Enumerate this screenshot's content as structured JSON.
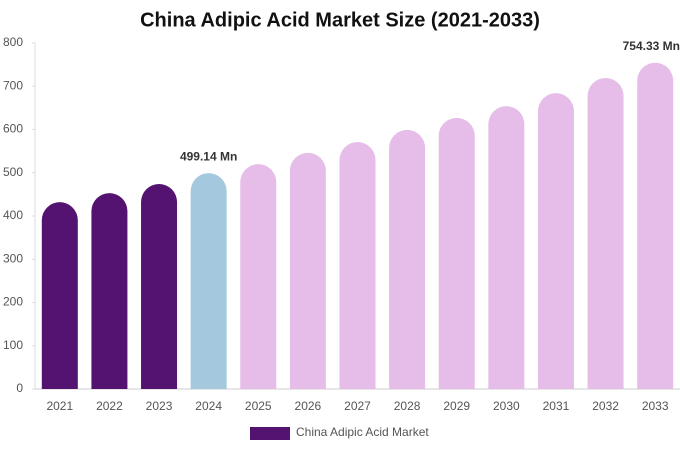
{
  "chart_data": {
    "type": "bar",
    "title": "China Adipic Acid Market Size (2021-2033)",
    "categories": [
      "2021",
      "2022",
      "2023",
      "2024",
      "2025",
      "2026",
      "2027",
      "2028",
      "2029",
      "2030",
      "2031",
      "2032",
      "2033"
    ],
    "series": [
      {
        "name": "China Adipic Acid Market",
        "color": "#541271",
        "values": [
          432,
          453,
          474,
          499.14,
          520,
          546,
          571,
          599,
          627,
          654,
          684,
          719,
          754.33
        ],
        "value_labels": [
          null,
          null,
          null,
          "499.14 Mn",
          null,
          null,
          null,
          null,
          null,
          null,
          null,
          null,
          "754.33 Mn"
        ],
        "colors": [
          "#541271",
          "#541271",
          "#541271",
          "#a4c9de",
          "#e6bde9",
          "#e6bde9",
          "#e6bde9",
          "#e6bde9",
          "#e6bde9",
          "#e6bde9",
          "#e6bde9",
          "#e6bde9",
          "#e6bde9"
        ]
      }
    ],
    "ylim": [
      0,
      800
    ],
    "yticks": [
      0,
      100,
      200,
      300,
      400,
      500,
      600,
      700,
      800
    ],
    "grid": false
  }
}
